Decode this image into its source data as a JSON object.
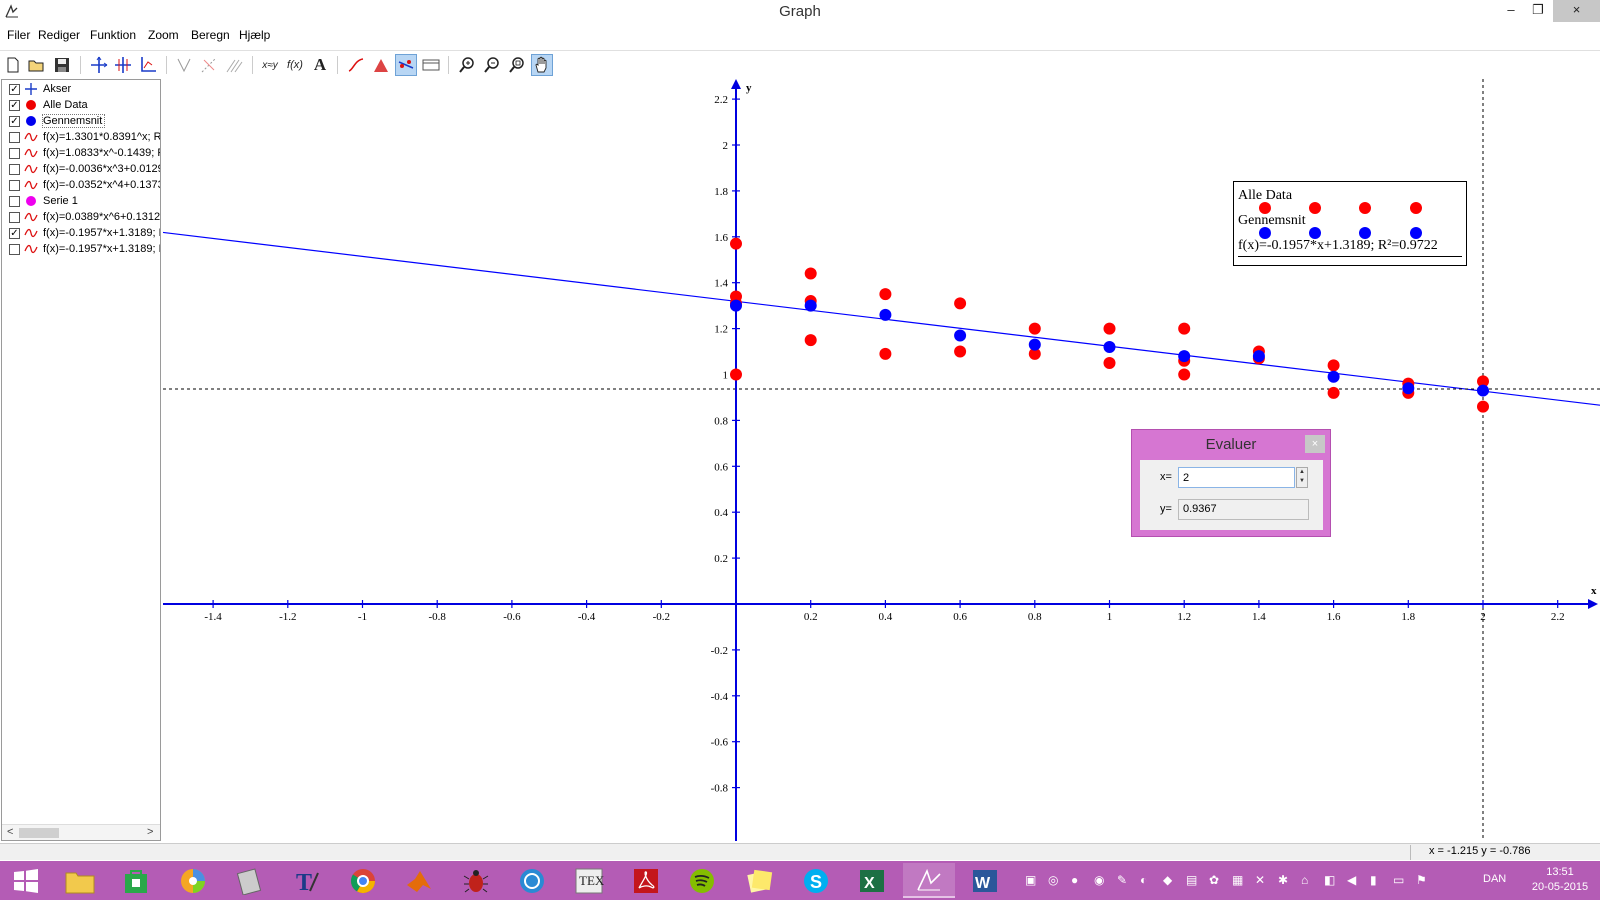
{
  "window": {
    "title": "Graph",
    "minimize_glyph": "–",
    "maximize_glyph": "❐",
    "close_glyph": "×"
  },
  "menu": [
    "Filer",
    "Rediger",
    "Funktion",
    "Zoom",
    "Beregn",
    "Hjælp"
  ],
  "toolbar": {
    "icons": [
      "new-file-icon",
      "open-folder-icon",
      "save-icon",
      "axes-icon",
      "axes-grid-icon",
      "axes-arrow-icon",
      "tangent-icon",
      "shading-icon",
      "series-icon",
      "xy-label-icon",
      "fx-icon",
      "text-icon",
      "insert-function-icon",
      "insert-shading-icon",
      "trendline-icon",
      "table-icon",
      "zoom-in-icon",
      "zoom-out-icon",
      "zoom-window-icon",
      "hand-pan-icon"
    ],
    "xy_label": "x≈y",
    "fx_label": "f(x)",
    "text_label": "A"
  },
  "sidepanel": {
    "items": [
      {
        "checked": true,
        "icon": "axes",
        "label": "Akser"
      },
      {
        "checked": true,
        "icon": "red-dot",
        "label": "Alle Data"
      },
      {
        "checked": true,
        "icon": "blue-dot",
        "label": "Gennemsnit"
      },
      {
        "checked": false,
        "icon": "red-curve",
        "label": "f(x)=1.3301*0.8391^x; R²"
      },
      {
        "checked": false,
        "icon": "red-curve",
        "label": "f(x)=1.0833*x^-0.1439; F"
      },
      {
        "checked": false,
        "icon": "red-curve",
        "label": "f(x)=-0.0036*x^3+0.0129"
      },
      {
        "checked": false,
        "icon": "red-curve",
        "label": "f(x)=-0.0352*x^4+0.1373"
      },
      {
        "checked": false,
        "icon": "magenta-dot",
        "label": "Serie 1"
      },
      {
        "checked": false,
        "icon": "red-curve",
        "label": "f(x)=0.0389*x^6+0.1312*"
      },
      {
        "checked": true,
        "icon": "red-curve",
        "label": "f(x)=-0.1957*x+1.3189; F"
      },
      {
        "checked": false,
        "icon": "red-curve",
        "label": "f(x)=-0.1957*x+1.3189; F"
      }
    ],
    "scroll_left": "<",
    "scroll_right": ">"
  },
  "colors": {
    "axis": "#0000e0",
    "all_data": "#ff0000",
    "average": "#0000ff",
    "trendline": "#0000ff",
    "taskbar": "#b45cb5",
    "dialog": "#d676d2"
  },
  "chart_data": {
    "type": "scatter",
    "xlabel": "x",
    "ylabel": "y",
    "xlim": [
      -1.55,
      2.2
    ],
    "ylim": [
      -0.97,
      2.32
    ],
    "xticks": [
      -1.4,
      -1.2,
      -1,
      -0.8,
      -0.6,
      -0.4,
      -0.2,
      0.2,
      0.4,
      0.6,
      0.8,
      1,
      1.2,
      1.4,
      1.6,
      1.8,
      2,
      2.2
    ],
    "yticks": [
      2.2,
      2,
      1.8,
      1.6,
      1.4,
      1.2,
      1,
      0.8,
      0.6,
      0.4,
      0.2,
      -0.2,
      -0.4,
      -0.6,
      -0.8
    ],
    "series": [
      {
        "name": "Alle Data",
        "color": "#ff0000",
        "points": [
          [
            0,
            1.57
          ],
          [
            0,
            1.34
          ],
          [
            0,
            1.31
          ],
          [
            0,
            1.0
          ],
          [
            0.2,
            1.44
          ],
          [
            0.2,
            1.32
          ],
          [
            0.2,
            1.15
          ],
          [
            0.4,
            1.35
          ],
          [
            0.4,
            1.09
          ],
          [
            0.6,
            1.31
          ],
          [
            0.6,
            1.1
          ],
          [
            0.8,
            1.2
          ],
          [
            0.8,
            1.09
          ],
          [
            1.0,
            1.2
          ],
          [
            1.0,
            1.05
          ],
          [
            1.2,
            1.2
          ],
          [
            1.2,
            1.06
          ],
          [
            1.2,
            1.0
          ],
          [
            1.4,
            1.1
          ],
          [
            1.4,
            1.07
          ],
          [
            1.6,
            1.04
          ],
          [
            1.6,
            0.92
          ],
          [
            1.8,
            0.96
          ],
          [
            1.8,
            0.92
          ],
          [
            2.0,
            0.97
          ],
          [
            2.0,
            0.86
          ]
        ]
      },
      {
        "name": "Gennemsnit",
        "color": "#0000ff",
        "points": [
          [
            0,
            1.3
          ],
          [
            0.2,
            1.3
          ],
          [
            0.4,
            1.26
          ],
          [
            0.6,
            1.17
          ],
          [
            0.8,
            1.13
          ],
          [
            1.0,
            1.12
          ],
          [
            1.2,
            1.08
          ],
          [
            1.4,
            1.08
          ],
          [
            1.6,
            0.99
          ],
          [
            1.8,
            0.94
          ],
          [
            2.0,
            0.93
          ]
        ]
      },
      {
        "name": "f(x)=-0.1957*x+1.3189; R²=0.9722",
        "type": "line",
        "slope": -0.1957,
        "intercept": 1.3189
      }
    ],
    "crosshair": {
      "x": 2,
      "y": 0.9367
    }
  },
  "legend": {
    "line1": "Alle Data",
    "line2": "Gennemsnit",
    "line3": "f(x)=-0.1957*x+1.3189; R²=0.9722"
  },
  "evaluer": {
    "title": "Evaluer",
    "close_glyph": "×",
    "x_label": "x=",
    "x_value": "2",
    "y_label": "y=",
    "y_value": "0.9367",
    "spin_up": "▲",
    "spin_down": "▼"
  },
  "statusbar": {
    "coords": "x = -1.215   y = -0.786"
  },
  "taskbar": {
    "lang": "DAN",
    "time": "13:51",
    "date": "20-05-2015",
    "apps": [
      "windows-start-icon",
      "file-explorer-icon",
      "store-icon",
      "picasa-icon",
      "archive-icon",
      "texnic-icon",
      "chrome-icon",
      "matlab-icon",
      "bug-icon",
      "app-circle-icon",
      "tex-icon",
      "acrobat-icon",
      "spotify-icon",
      "sticky-notes-icon",
      "skype-icon",
      "excel-icon",
      "graph-icon",
      "word-icon"
    ]
  }
}
